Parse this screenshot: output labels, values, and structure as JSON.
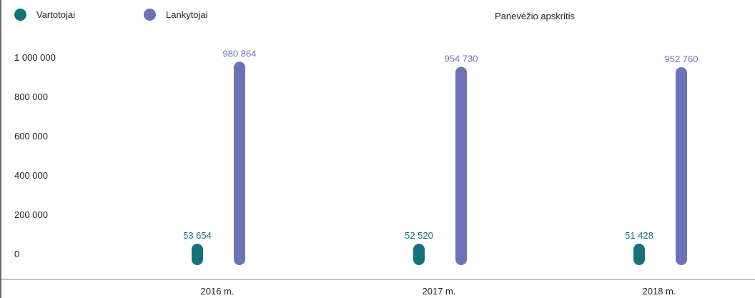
{
  "header": {
    "region": "Panevėžio apskritis"
  },
  "colors": {
    "vartotojai": "#13727a",
    "lankytojai": "#6b72b8",
    "axis": "#888888"
  },
  "chart_data": {
    "type": "bar",
    "title": "Panevėžio apskritis",
    "categories": [
      "2016 m.",
      "2017 m.",
      "2018 m."
    ],
    "series": [
      {
        "name": "Vartotojai",
        "values": [
          53654,
          52520,
          51428
        ],
        "labels": [
          "53 654",
          "52 520",
          "51 428"
        ]
      },
      {
        "name": "Lankytojai",
        "values": [
          980864,
          954730,
          952760
        ],
        "labels": [
          "980 864",
          "954 730",
          "952 760"
        ]
      }
    ],
    "yticks": [
      0,
      200000,
      400000,
      600000,
      800000,
      1000000
    ],
    "ytick_labels": [
      "0",
      "200 000",
      "400 000",
      "600 000",
      "800 000",
      "1 000 000"
    ],
    "ylim": [
      0,
      1000000
    ],
    "legend_position": "top-left",
    "grid": false
  }
}
